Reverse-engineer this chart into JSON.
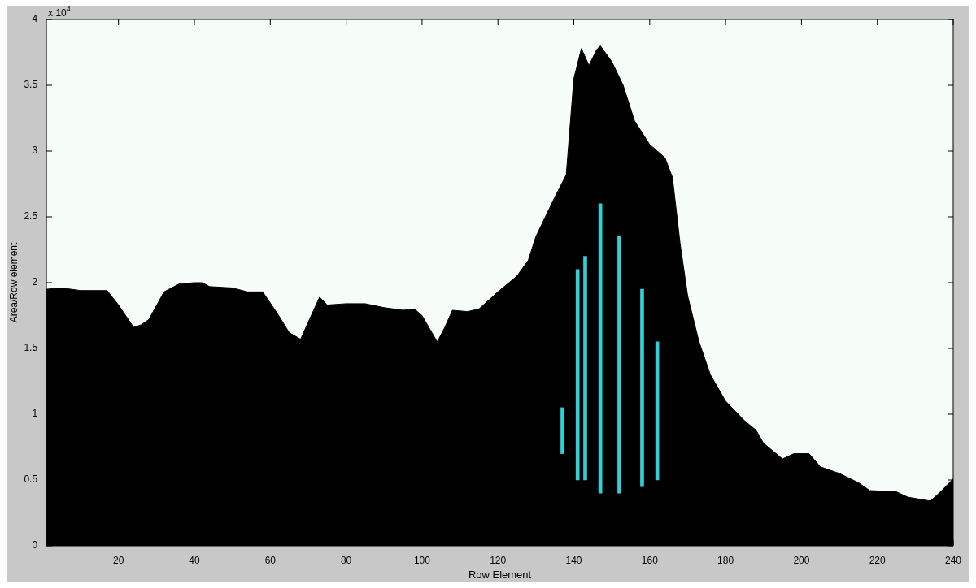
{
  "chart_data": {
    "type": "area",
    "xlabel": "Row Element",
    "ylabel": "Area/Row element",
    "annotations": [
      "x 10$^{4}$"
    ],
    "xlim": [
      1,
      240
    ],
    "xticks": [
      20,
      40,
      60,
      80,
      100,
      120,
      140,
      160,
      180,
      200,
      220,
      240
    ],
    "ylim": [
      0,
      4
    ],
    "yticks": [
      0,
      0.5,
      1,
      1.5,
      2,
      2.5,
      3,
      3.5,
      4
    ],
    "grid": false,
    "legend": false,
    "series": [
      {
        "color": "#000000",
        "x": [
          1,
          5,
          10,
          17,
          20,
          24,
          26,
          28,
          32,
          36,
          40,
          42,
          44,
          50,
          54,
          58,
          62,
          65,
          68,
          70,
          73,
          75,
          80,
          85,
          90,
          95,
          98,
          100,
          104,
          106,
          108,
          112,
          115,
          120,
          125,
          128,
          130,
          135,
          138,
          140,
          142,
          144,
          146,
          147,
          150,
          153,
          156,
          160,
          164,
          166,
          168,
          170,
          173,
          176,
          180,
          185,
          188,
          190,
          195,
          198,
          202,
          205,
          210,
          215,
          218,
          225,
          228,
          234,
          237,
          240
        ],
        "values": [
          1.95,
          1.96,
          1.94,
          1.94,
          1.83,
          1.66,
          1.68,
          1.72,
          1.93,
          1.99,
          2.0,
          2.0,
          1.97,
          1.96,
          1.93,
          1.93,
          1.76,
          1.62,
          1.57,
          1.7,
          1.89,
          1.83,
          1.84,
          1.84,
          1.81,
          1.79,
          1.8,
          1.75,
          1.55,
          1.66,
          1.79,
          1.78,
          1.8,
          1.93,
          2.05,
          2.17,
          2.35,
          2.65,
          2.82,
          3.55,
          3.78,
          3.65,
          3.77,
          3.8,
          3.68,
          3.5,
          3.23,
          3.05,
          2.95,
          2.8,
          2.3,
          1.9,
          1.55,
          1.3,
          1.1,
          0.95,
          0.88,
          0.78,
          0.66,
          0.7,
          0.7,
          0.6,
          0.55,
          0.48,
          0.42,
          0.41,
          0.37,
          0.34,
          0.42,
          0.51
        ]
      },
      {
        "type": "bar",
        "color": "#30d0d8",
        "x": [
          137,
          141,
          143,
          147,
          152,
          158,
          162
        ],
        "base": [
          0.7,
          0.5,
          0.5,
          0.4,
          0.4,
          0.45,
          0.5
        ],
        "values": [
          0.35,
          1.6,
          1.7,
          2.2,
          1.95,
          1.5,
          1.05
        ]
      }
    ]
  }
}
